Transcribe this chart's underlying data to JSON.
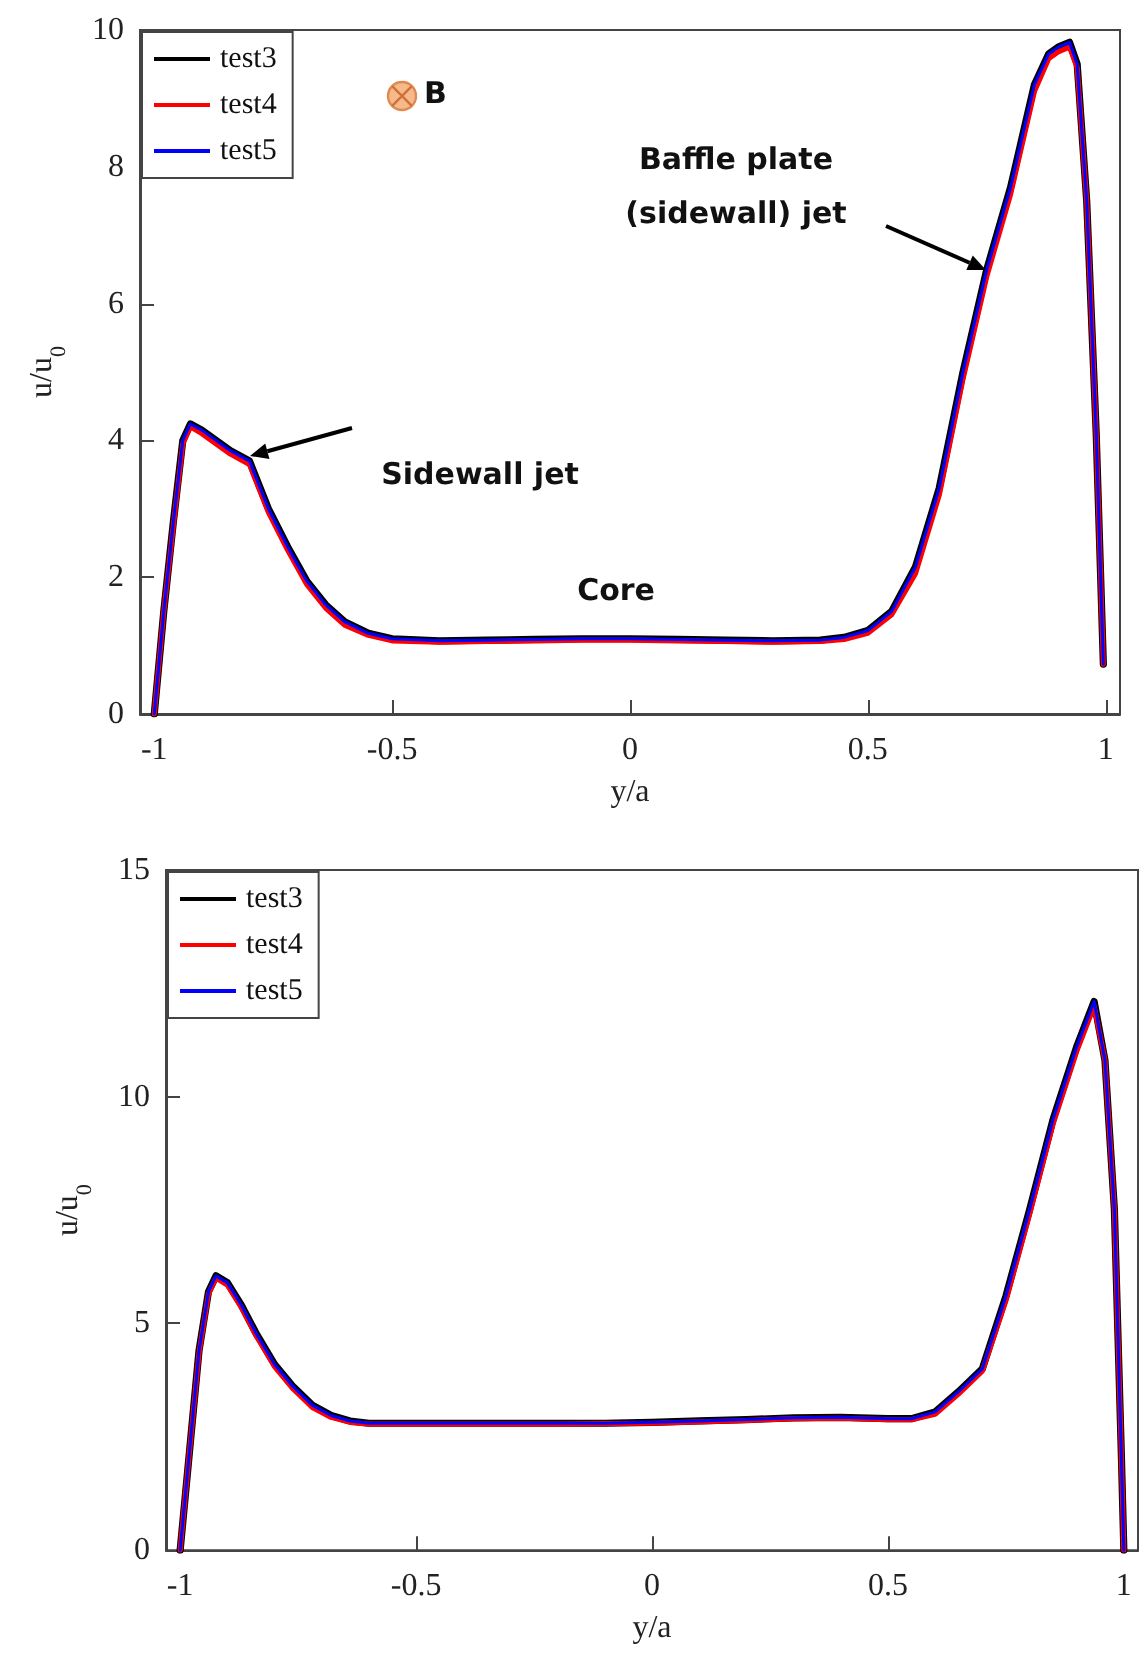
{
  "chart_data": [
    {
      "type": "line",
      "xlabel": "y/a",
      "ylabel": "u/u$_{0}$",
      "xlim": [
        -1.03,
        1.03
      ],
      "ylim": [
        0,
        10
      ],
      "xticks": [
        -1,
        -0.5,
        0,
        0.5,
        1
      ],
      "yticks": [
        0,
        2,
        4,
        6,
        8,
        10
      ],
      "legend": "top left",
      "grid": false,
      "x": [
        -1,
        -0.98,
        -0.96,
        -0.94,
        -0.924,
        -0.9,
        -0.87,
        -0.84,
        -0.8,
        -0.76,
        -0.72,
        -0.68,
        -0.64,
        -0.6,
        -0.55,
        -0.5,
        -0.4,
        -0.3,
        -0.2,
        -0.1,
        0,
        0.1,
        0.2,
        0.3,
        0.4,
        0.45,
        0.5,
        0.55,
        0.6,
        0.65,
        0.7,
        0.75,
        0.8,
        0.85,
        0.88,
        0.9,
        0.924,
        0.94,
        0.96,
        0.98,
        0.995
      ],
      "series": [
        {
          "name": "test3",
          "color": "#000000",
          "values": [
            0,
            1.5,
            2.8,
            4.0,
            4.24,
            4.15,
            4.0,
            3.85,
            3.7,
            3.0,
            2.45,
            1.95,
            1.6,
            1.35,
            1.18,
            1.1,
            1.07,
            1.08,
            1.09,
            1.1,
            1.1,
            1.09,
            1.08,
            1.07,
            1.08,
            1.12,
            1.22,
            1.5,
            2.15,
            3.3,
            5.0,
            6.5,
            7.7,
            9.2,
            9.65,
            9.75,
            9.82,
            9.5,
            7.5,
            4.1,
            0.73
          ]
        },
        {
          "name": "test4",
          "color": "#ff0000",
          "values": [
            0,
            1.5,
            2.75,
            3.95,
            4.2,
            4.1,
            3.95,
            3.8,
            3.65,
            2.95,
            2.4,
            1.9,
            1.55,
            1.3,
            1.15,
            1.07,
            1.05,
            1.06,
            1.07,
            1.08,
            1.08,
            1.07,
            1.06,
            1.05,
            1.06,
            1.09,
            1.18,
            1.45,
            2.05,
            3.2,
            4.9,
            6.4,
            7.6,
            9.1,
            9.58,
            9.68,
            9.75,
            9.45,
            7.5,
            4.1,
            0.73
          ]
        },
        {
          "name": "test5",
          "color": "#0000ff",
          "values": [
            0,
            1.5,
            2.8,
            4.0,
            4.24,
            4.15,
            4.0,
            3.85,
            3.7,
            3.0,
            2.45,
            1.95,
            1.6,
            1.35,
            1.18,
            1.1,
            1.07,
            1.08,
            1.09,
            1.1,
            1.1,
            1.09,
            1.08,
            1.07,
            1.08,
            1.12,
            1.22,
            1.5,
            2.15,
            3.3,
            5.0,
            6.5,
            7.7,
            9.2,
            9.65,
            9.75,
            9.82,
            9.5,
            7.5,
            4.1,
            0.73
          ]
        }
      ],
      "annotations": [
        "B",
        "Sidewall jet",
        "Baffle plate\n(sidewall) jet",
        "Core"
      ]
    },
    {
      "type": "line",
      "xlabel": "y/a",
      "ylabel": "u/u$_{0}$",
      "xlim": [
        -1.03,
        1.03
      ],
      "ylim": [
        0,
        15
      ],
      "xticks": [
        -1,
        -0.5,
        0,
        0.5,
        1
      ],
      "yticks": [
        0,
        5,
        10,
        15
      ],
      "legend": "top left",
      "grid": false,
      "x": [
        -1,
        -0.98,
        -0.96,
        -0.94,
        -0.924,
        -0.9,
        -0.87,
        -0.84,
        -0.8,
        -0.76,
        -0.72,
        -0.68,
        -0.64,
        -0.6,
        -0.5,
        -0.4,
        -0.3,
        -0.2,
        -0.1,
        0,
        0.1,
        0.2,
        0.3,
        0.4,
        0.5,
        0.55,
        0.6,
        0.65,
        0.7,
        0.75,
        0.8,
        0.85,
        0.9,
        0.937,
        0.96,
        0.98,
        0.995,
        1.0
      ],
      "series": [
        {
          "name": "test3",
          "color": "#000000",
          "values": [
            0,
            2.2,
            4.4,
            5.7,
            6.05,
            5.9,
            5.4,
            4.8,
            4.1,
            3.6,
            3.2,
            2.97,
            2.85,
            2.8,
            2.8,
            2.8,
            2.8,
            2.8,
            2.8,
            2.82,
            2.85,
            2.88,
            2.92,
            2.93,
            2.9,
            2.9,
            3.05,
            3.5,
            4.0,
            5.6,
            7.5,
            9.5,
            11.1,
            12.1,
            10.8,
            7.5,
            2.0,
            0
          ]
        },
        {
          "name": "test4",
          "color": "#ff0000",
          "values": [
            0,
            2.2,
            4.35,
            5.65,
            6.0,
            5.85,
            5.35,
            4.75,
            4.05,
            3.55,
            3.15,
            2.93,
            2.82,
            2.78,
            2.78,
            2.78,
            2.78,
            2.78,
            2.79,
            2.8,
            2.83,
            2.86,
            2.9,
            2.91,
            2.88,
            2.88,
            3.0,
            3.45,
            3.95,
            5.5,
            7.4,
            9.4,
            11.0,
            12.0,
            10.8,
            7.5,
            2.0,
            0
          ]
        },
        {
          "name": "test5",
          "color": "#0000ff",
          "values": [
            0,
            2.2,
            4.4,
            5.7,
            6.05,
            5.9,
            5.4,
            4.8,
            4.1,
            3.6,
            3.2,
            2.97,
            2.85,
            2.8,
            2.8,
            2.8,
            2.8,
            2.8,
            2.8,
            2.82,
            2.85,
            2.88,
            2.92,
            2.93,
            2.9,
            2.9,
            3.05,
            3.5,
            4.0,
            5.6,
            7.5,
            9.5,
            11.1,
            12.1,
            10.8,
            7.5,
            2.0,
            0
          ]
        }
      ]
    }
  ]
}
